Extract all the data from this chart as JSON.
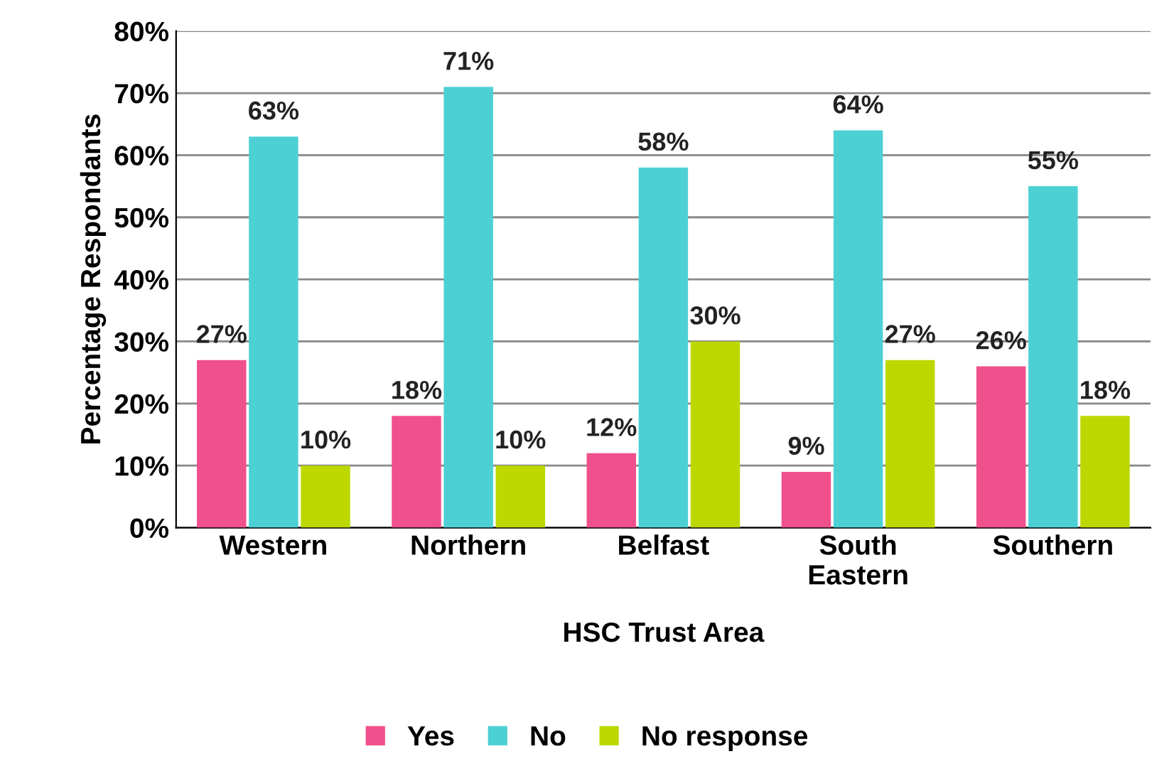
{
  "chart_data": {
    "type": "bar",
    "xlabel": "HSC Trust Area",
    "ylabel": "Percentage Respondants",
    "categories": [
      "Western",
      "Northern",
      "Belfast",
      "South\nEastern",
      "Southern"
    ],
    "series": [
      {
        "name": "Yes",
        "color": "#f0508c",
        "values": [
          27,
          18,
          12,
          9,
          26
        ],
        "value_labels": [
          "27%",
          "18%",
          "12%",
          "9%",
          "26%"
        ]
      },
      {
        "name": "No",
        "color": "#4dd0d4",
        "values": [
          63,
          71,
          58,
          64,
          55
        ],
        "value_labels": [
          "63%",
          "71%",
          "58%",
          "64%",
          "55%"
        ]
      },
      {
        "name": "No response",
        "color": "#bcd800",
        "values": [
          10,
          10,
          30,
          27,
          18
        ],
        "value_labels": [
          "10%",
          "10%",
          "30%",
          "27%",
          "18%"
        ]
      }
    ],
    "ylim": [
      0,
      80
    ],
    "yticks": [
      {
        "value": 0,
        "label": "0%"
      },
      {
        "value": 10,
        "label": "10%"
      },
      {
        "value": 20,
        "label": "20%"
      },
      {
        "value": 30,
        "label": "30%"
      },
      {
        "value": 40,
        "label": "40%"
      },
      {
        "value": 50,
        "label": "50%"
      },
      {
        "value": 60,
        "label": "60%"
      },
      {
        "value": 70,
        "label": "70%"
      },
      {
        "value": 80,
        "label": "80%"
      }
    ],
    "grid": "y",
    "legend": "bottom"
  }
}
